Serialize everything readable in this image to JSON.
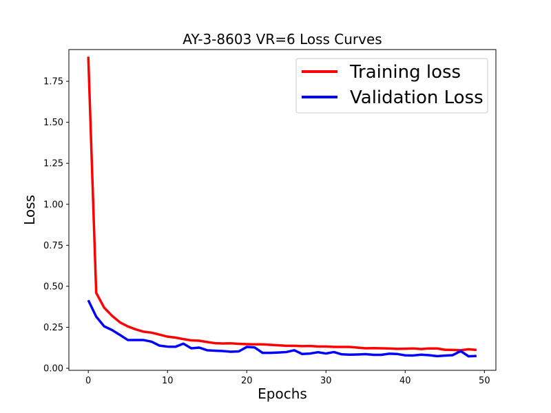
{
  "chart_data": {
    "type": "line",
    "title": "AY-3-8603 VR=6 Loss Curves",
    "xlabel": "Epochs",
    "ylabel": "Loss",
    "xlim": [
      -2.45,
      51.45
    ],
    "ylim": [
      -0.0125,
      1.9435
    ],
    "xticks": [
      0,
      10,
      20,
      30,
      40,
      50
    ],
    "yticks": [
      0.0,
      0.25,
      0.5,
      0.75,
      1.0,
      1.25,
      1.5,
      1.75
    ],
    "xtick_labels": [
      "0",
      "10",
      "20",
      "30",
      "40",
      "50"
    ],
    "ytick_labels": [
      "0.00",
      "0.25",
      "0.50",
      "0.75",
      "1.00",
      "1.25",
      "1.50",
      "1.75"
    ],
    "legend_position": "top-right",
    "x": [
      0,
      1,
      2,
      3,
      4,
      5,
      6,
      7,
      8,
      9,
      10,
      11,
      12,
      13,
      14,
      15,
      16,
      17,
      18,
      19,
      20,
      21,
      22,
      23,
      24,
      25,
      26,
      27,
      28,
      29,
      30,
      31,
      32,
      33,
      34,
      35,
      36,
      37,
      38,
      39,
      40,
      41,
      42,
      43,
      44,
      45,
      46,
      47,
      48,
      49
    ],
    "series": [
      {
        "name": "Training loss",
        "color": "#ff0000",
        "values": [
          1.9,
          0.46,
          0.37,
          0.32,
          0.28,
          0.255,
          0.237,
          0.223,
          0.217,
          0.205,
          0.193,
          0.187,
          0.178,
          0.17,
          0.168,
          0.16,
          0.153,
          0.151,
          0.152,
          0.149,
          0.147,
          0.146,
          0.146,
          0.143,
          0.14,
          0.137,
          0.137,
          0.135,
          0.136,
          0.133,
          0.133,
          0.13,
          0.13,
          0.13,
          0.126,
          0.122,
          0.123,
          0.122,
          0.121,
          0.118,
          0.119,
          0.121,
          0.117,
          0.121,
          0.121,
          0.113,
          0.112,
          0.11,
          0.116,
          0.112
        ]
      },
      {
        "name": "Validation Loss",
        "color": "#0000ff",
        "values": [
          0.415,
          0.315,
          0.256,
          0.233,
          0.203,
          0.172,
          0.172,
          0.172,
          0.162,
          0.138,
          0.132,
          0.131,
          0.15,
          0.122,
          0.126,
          0.11,
          0.107,
          0.105,
          0.101,
          0.103,
          0.13,
          0.127,
          0.094,
          0.094,
          0.096,
          0.099,
          0.11,
          0.087,
          0.09,
          0.098,
          0.09,
          0.099,
          0.085,
          0.083,
          0.084,
          0.086,
          0.082,
          0.082,
          0.089,
          0.087,
          0.079,
          0.078,
          0.083,
          0.08,
          0.074,
          0.077,
          0.08,
          0.105,
          0.073,
          0.075
        ]
      }
    ]
  }
}
